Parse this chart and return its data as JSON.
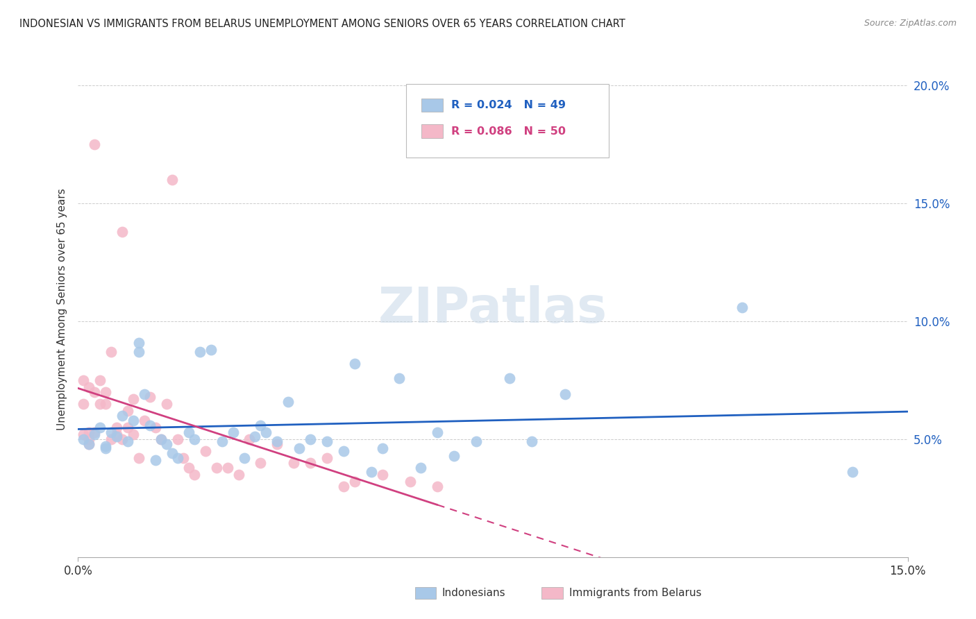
{
  "title": "INDONESIAN VS IMMIGRANTS FROM BELARUS UNEMPLOYMENT AMONG SENIORS OVER 65 YEARS CORRELATION CHART",
  "source": "Source: ZipAtlas.com",
  "ylabel": "Unemployment Among Seniors over 65 years",
  "xlim": [
    0.0,
    0.15
  ],
  "ylim": [
    0.0,
    0.21
  ],
  "yticks": [
    0.05,
    0.1,
    0.15,
    0.2
  ],
  "ytick_labels": [
    "5.0%",
    "10.0%",
    "15.0%",
    "20.0%"
  ],
  "blue_scatter_color": "#a8c8e8",
  "pink_scatter_color": "#f4b8c8",
  "trend_blue_color": "#2060c0",
  "trend_pink_color": "#d04080",
  "grid_color": "#cccccc",
  "watermark_color": "#c8d8e8",
  "indonesian_x": [
    0.001,
    0.002,
    0.003,
    0.004,
    0.005,
    0.005,
    0.006,
    0.007,
    0.008,
    0.009,
    0.01,
    0.011,
    0.011,
    0.012,
    0.013,
    0.014,
    0.015,
    0.016,
    0.017,
    0.018,
    0.02,
    0.021,
    0.022,
    0.024,
    0.026,
    0.028,
    0.03,
    0.032,
    0.033,
    0.034,
    0.036,
    0.038,
    0.04,
    0.042,
    0.045,
    0.048,
    0.05,
    0.053,
    0.055,
    0.058,
    0.062,
    0.065,
    0.068,
    0.072,
    0.078,
    0.082,
    0.088,
    0.12,
    0.14
  ],
  "indonesian_y": [
    0.05,
    0.048,
    0.052,
    0.055,
    0.047,
    0.046,
    0.053,
    0.051,
    0.06,
    0.049,
    0.058,
    0.087,
    0.091,
    0.069,
    0.056,
    0.041,
    0.05,
    0.048,
    0.044,
    0.042,
    0.053,
    0.05,
    0.087,
    0.088,
    0.049,
    0.053,
    0.042,
    0.051,
    0.056,
    0.053,
    0.049,
    0.066,
    0.046,
    0.05,
    0.049,
    0.045,
    0.082,
    0.036,
    0.046,
    0.076,
    0.038,
    0.053,
    0.043,
    0.049,
    0.076,
    0.049,
    0.069,
    0.106,
    0.036
  ],
  "belarus_x": [
    0.001,
    0.001,
    0.001,
    0.002,
    0.002,
    0.002,
    0.002,
    0.003,
    0.003,
    0.003,
    0.004,
    0.004,
    0.005,
    0.005,
    0.006,
    0.006,
    0.007,
    0.007,
    0.008,
    0.008,
    0.009,
    0.009,
    0.01,
    0.01,
    0.011,
    0.012,
    0.013,
    0.014,
    0.015,
    0.016,
    0.017,
    0.018,
    0.019,
    0.02,
    0.021,
    0.023,
    0.025,
    0.027,
    0.029,
    0.031,
    0.033,
    0.036,
    0.039,
    0.042,
    0.045,
    0.048,
    0.05,
    0.055,
    0.06,
    0.065
  ],
  "belarus_y": [
    0.052,
    0.065,
    0.075,
    0.05,
    0.053,
    0.072,
    0.048,
    0.053,
    0.07,
    0.175,
    0.065,
    0.075,
    0.065,
    0.07,
    0.05,
    0.087,
    0.055,
    0.052,
    0.138,
    0.05,
    0.062,
    0.055,
    0.052,
    0.067,
    0.042,
    0.058,
    0.068,
    0.055,
    0.05,
    0.065,
    0.16,
    0.05,
    0.042,
    0.038,
    0.035,
    0.045,
    0.038,
    0.038,
    0.035,
    0.05,
    0.04,
    0.048,
    0.04,
    0.04,
    0.042,
    0.03,
    0.032,
    0.035,
    0.032,
    0.03
  ],
  "legend_blue_r": "R = 0.024",
  "legend_blue_n": "N = 49",
  "legend_pink_r": "R = 0.086",
  "legend_pink_n": "N = 50",
  "label_indonesians": "Indonesians",
  "label_belarus": "Immigrants from Belarus",
  "watermark": "ZIPatlas",
  "background_color": "#ffffff"
}
